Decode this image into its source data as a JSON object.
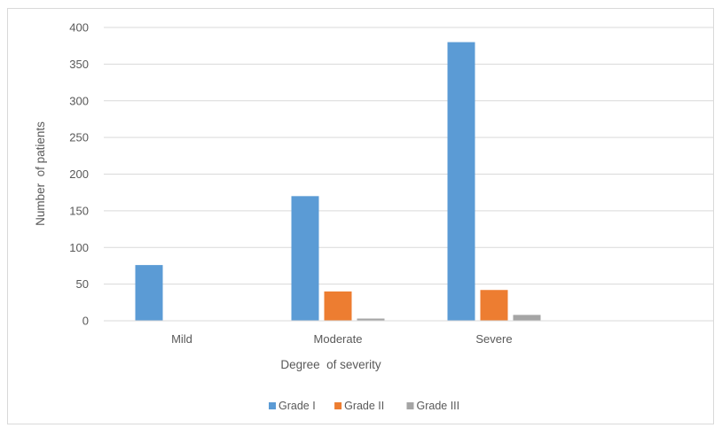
{
  "chart_data": {
    "type": "bar",
    "categories": [
      "Mild",
      "Moderate",
      "Severe",
      ""
    ],
    "series": [
      {
        "name": "Grade I",
        "color": "#5b9bd5",
        "values": [
          76,
          170,
          380,
          0
        ]
      },
      {
        "name": "Grade II",
        "color": "#ed7d31",
        "values": [
          0,
          40,
          42,
          0
        ]
      },
      {
        "name": "Grade III",
        "color": "#a5a5a5",
        "values": [
          0,
          3,
          8,
          0
        ]
      }
    ],
    "xlabel": "Degree  of severity",
    "ylabel": "Number  of patients",
    "ylim": [
      0,
      400
    ],
    "yticks": [
      0,
      50,
      100,
      150,
      200,
      250,
      300,
      350,
      400
    ],
    "grid": true,
    "legend_position": "bottom"
  }
}
